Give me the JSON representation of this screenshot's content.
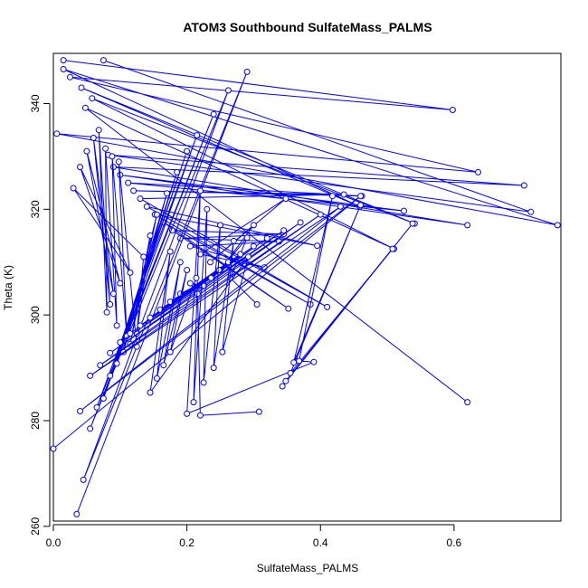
{
  "chart_data": {
    "type": "line",
    "title": "ATOM3 Southbound SulfateMass_PALMS",
    "xlabel": "SulfateMass_PALMS",
    "ylabel": "Theta (K)",
    "xlim": [
      0.0,
      0.76
    ],
    "ylim": [
      261,
      349.5
    ],
    "xticks": [
      0.0,
      0.2,
      0.4,
      0.6
    ],
    "xtick_labels": [
      "0.0",
      "0.2",
      "0.4",
      "0.6"
    ],
    "yticks": [
      260,
      280,
      300,
      320,
      340
    ],
    "ytick_labels": [
      "260",
      "280",
      "300",
      "320",
      "340"
    ],
    "grid": false,
    "legend": "none",
    "marker": "open-circle",
    "color": "#0000ff",
    "series": [
      {
        "x": [
          0.015,
          0.598,
          0.025,
          0.636,
          0.005,
          0.755,
          0.015,
          0.459,
          0.042,
          0.541,
          0.058,
          0.51,
          0.048,
          0.62
        ],
        "y": [
          348.2,
          338.8,
          345.0,
          327.0,
          334.3,
          317.0,
          346.5,
          320.5,
          343.0,
          317.3,
          341.0,
          312.5,
          339.2,
          283.5
        ]
      },
      {
        "x": [
          0.075,
          0.715,
          0.082,
          0.705,
          0.09,
          0.62,
          0.1,
          0.525,
          0.112,
          0.462,
          0.12,
          0.435,
          0.13,
          0.41,
          0.14,
          0.395,
          0.152,
          0.385,
          0.165,
          0.352,
          0.178,
          0.345,
          0.19,
          0.338,
          0.205,
          0.316,
          0.22,
          0.348,
          0.235,
          0.3,
          0.25,
          0.29,
          0.265,
          0.305
        ],
        "y": [
          348.2,
          319.5,
          330.3,
          324.5,
          328.0,
          317.0,
          326.5,
          319.7,
          325.0,
          322.5,
          323.5,
          322.8,
          322.0,
          301.5,
          320.5,
          313.1,
          319.0,
          302.0,
          317.5,
          301.2,
          316.0,
          315.3,
          314.5,
          313.9,
          313.0,
          309.0,
          311.5,
          322.0,
          310.0,
          317.0,
          308.5,
          314.6,
          307.0,
          302.0
        ]
      },
      {
        "x": [
          0.035,
          0.29,
          0.045,
          0.262,
          0.055,
          0.24,
          0.065,
          0.215,
          0.075,
          0.2,
          0.085,
          0.185,
          0.095,
          0.17,
          0.105,
          0.155,
          0.115,
          0.145,
          0.125,
          0.135,
          0.03,
          0.115,
          0.04,
          0.1,
          0.05,
          0.09,
          0.06,
          0.085,
          0.068,
          0.08,
          0.078,
          0.095,
          0.088,
          0.11,
          0.098,
          0.125
        ],
        "y": [
          262.3,
          346.0,
          268.8,
          342.5,
          278.5,
          338.0,
          282.5,
          334.0,
          284.2,
          331.0,
          288.5,
          327.0,
          290.8,
          323.0,
          293.0,
          319.0,
          294.5,
          315.0,
          296.5,
          311.0,
          324.0,
          308.0,
          328.0,
          306.0,
          331.0,
          304.0,
          333.5,
          302.0,
          335.0,
          300.5,
          331.5,
          298.0,
          330.0,
          296.0,
          329.0,
          294.0
        ]
      },
      {
        "x": [
          0.0,
          0.46,
          0.04,
          0.43,
          0.055,
          0.4,
          0.07,
          0.37,
          0.085,
          0.345,
          0.1,
          0.32,
          0.115,
          0.3,
          0.13,
          0.28,
          0.145,
          0.262,
          0.16,
          0.248,
          0.175,
          0.236,
          0.19,
          0.226,
          0.205,
          0.216,
          0.22,
          0.308
        ],
        "y": [
          274.7,
          322.5,
          281.8,
          320.5,
          288.5,
          319.0,
          290.5,
          317.5,
          292.8,
          316.0,
          294.8,
          314.5,
          296.5,
          313.0,
          298.0,
          311.5,
          299.5,
          310.0,
          301.0,
          308.5,
          302.5,
          307.0,
          304.0,
          305.5,
          306.0,
          304.0,
          281.0,
          281.7
        ]
      },
      {
        "x": [
          0.343,
          0.538,
          0.348,
          0.508,
          0.355,
          0.46,
          0.36,
          0.418,
          0.368,
          0.39,
          0.2,
          0.22,
          0.21,
          0.23,
          0.225,
          0.25,
          0.24,
          0.27,
          0.253,
          0.292,
          0.145,
          0.175,
          0.155,
          0.19,
          0.165,
          0.2,
          0.175,
          0.214
        ],
        "y": [
          286.5,
          317.3,
          287.5,
          312.5,
          289.0,
          320.8,
          291.0,
          322.5,
          291.3,
          291.1,
          281.3,
          323.5,
          283.5,
          320.0,
          287.2,
          317.0,
          290.0,
          314.0,
          293.0,
          311.0,
          285.3,
          312.0,
          288.0,
          310.0,
          290.5,
          308.5,
          293.0,
          307.0
        ]
      }
    ]
  }
}
